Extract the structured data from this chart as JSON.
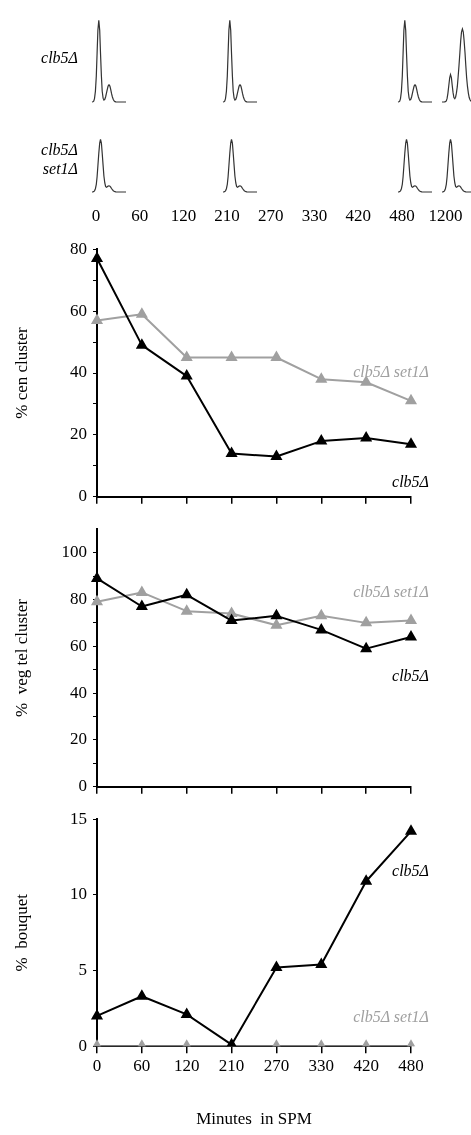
{
  "chart_data": [
    {
      "type": "other",
      "categories": [
        "0",
        "60",
        "120",
        "210",
        "270",
        "330",
        "420",
        "480",
        "1200"
      ],
      "annotations": [
        "clb5Δ",
        "clb5Δ set1Δ"
      ]
    },
    {
      "type": "line",
      "ylabel": "% cen cluster",
      "categories": [
        "0",
        "60",
        "120",
        "210",
        "270",
        "330",
        "420",
        "480"
      ],
      "ylim": [
        0,
        80
      ],
      "yticks": [
        0,
        {
          "value": 10,
          "label": null
        },
        20,
        {
          "value": 30,
          "label": null
        },
        40,
        {
          "value": 50,
          "label": null
        },
        60,
        {
          "value": 70,
          "label": null
        },
        80
      ],
      "tick_labels": "y",
      "marker": "triangle",
      "legend": false,
      "grid": false,
      "series": [
        {
          "name": "clb5Δ",
          "color": "#000000",
          "values": [
            77,
            49,
            39,
            14,
            13,
            18,
            19,
            17
          ]
        },
        {
          "name": "clb5Δ set1Δ",
          "color": "#a0a0a0",
          "values": [
            57,
            59,
            45,
            45,
            45,
            38,
            37,
            31
          ]
        }
      ]
    },
    {
      "type": "line",
      "ylabel": "%  veg tel cluster",
      "categories": [
        "0",
        "60",
        "120",
        "210",
        "270",
        "330",
        "420",
        "480"
      ],
      "ylim": [
        0,
        110
      ],
      "yticks": [
        0,
        {
          "value": 10,
          "label": null
        },
        20,
        {
          "value": 30,
          "label": null
        },
        40,
        {
          "value": 50,
          "label": null
        },
        60,
        {
          "value": 70,
          "label": null
        },
        80,
        {
          "value": 90,
          "label": null
        },
        100
      ],
      "tick_labels": "y",
      "marker": "triangle",
      "legend": false,
      "grid": false,
      "series": [
        {
          "name": "clb5Δ",
          "color": "#000000",
          "values": [
            89,
            77,
            82,
            71,
            73,
            67,
            59,
            64
          ]
        },
        {
          "name": "clb5Δ set1Δ",
          "color": "#a0a0a0",
          "values": [
            79,
            83,
            75,
            74,
            69,
            73,
            70,
            71
          ]
        }
      ]
    },
    {
      "type": "line",
      "ylabel": "%  bouquet",
      "xlabel": "Minutes  in SPM",
      "categories": [
        "0",
        "60",
        "120",
        "210",
        "270",
        "330",
        "420",
        "480"
      ],
      "ylim": [
        0,
        15
      ],
      "yticks": [
        0,
        5,
        10,
        15
      ],
      "marker": "triangle",
      "legend": false,
      "grid": false,
      "series": [
        {
          "name": "clb5Δ",
          "color": "#000000",
          "values": [
            2,
            3.3,
            2.1,
            0.1,
            5.2,
            5.4,
            10.9,
            14.2
          ]
        },
        {
          "name": "clb5Δ set1Δ",
          "color": "#a0a0a0",
          "values": [
            0,
            0,
            0,
            0,
            0,
            0,
            0,
            0
          ]
        }
      ]
    }
  ]
}
